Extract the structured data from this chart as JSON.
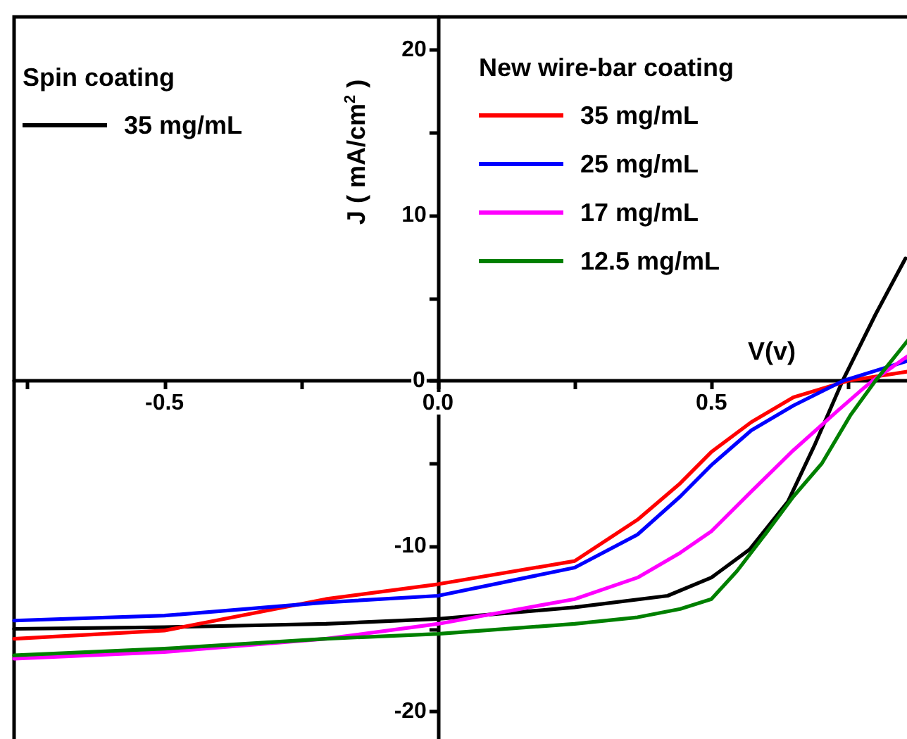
{
  "chart_data": {
    "type": "line",
    "xlabel": "V(v)",
    "ylabel": "J ( mA/cm$^{2}$ )",
    "annotations": [
      "Spin coating",
      "New wire-bar coating"
    ],
    "xlim": [
      -0.775,
      0.868
    ],
    "ylim": [
      -22,
      22
    ],
    "xticks": [
      {
        "value": -0.75,
        "label": null
      },
      -0.5,
      {
        "value": -0.25,
        "label": null
      },
      {
        "value": 0,
        "label": "0.0"
      },
      {
        "value": 0.25,
        "label": null
      },
      0.5,
      {
        "value": 0.75,
        "label": null
      }
    ],
    "yticks": [
      -20,
      {
        "value": -15,
        "label": null
      },
      -10,
      {
        "value": -5,
        "label": null
      },
      0,
      {
        "value": 5,
        "label": null
      },
      10,
      {
        "value": 15,
        "label": null
      },
      20
    ],
    "grid": false,
    "legend": "top",
    "marker": "none",
    "line_style": "solid",
    "series": [
      {
        "name": "35 mg/mL",
        "color": "#000000",
        "x": [
          -0.775,
          -0.5,
          -0.205,
          0,
          0.25,
          0.42,
          0.5,
          0.57,
          0.64,
          0.69,
          0.74,
          0.8,
          0.855
        ],
        "values": [
          -15.0,
          -14.9,
          -14.7,
          -14.4,
          -13.7,
          -13.0,
          -11.9,
          -10.2,
          -7.3,
          -3.8,
          0,
          4,
          7.4
        ]
      },
      {
        "name": "35 mg/mL",
        "color": "#ff0000",
        "x": [
          -0.775,
          -0.5,
          -0.205,
          0,
          0.25,
          0.365,
          0.443,
          0.5,
          0.573,
          0.65,
          0.73,
          0.75,
          0.868
        ],
        "values": [
          -15.6,
          -15.1,
          -13.2,
          -12.3,
          -10.9,
          -8.4,
          -6.2,
          -4.3,
          -2.5,
          -1.0,
          -0.2,
          0,
          0.6
        ]
      },
      {
        "name": "25 mg/mL",
        "color": "#0000ff",
        "x": [
          -0.775,
          -0.5,
          -0.205,
          0,
          0.25,
          0.365,
          0.443,
          0.5,
          0.573,
          0.65,
          0.741,
          0.868
        ],
        "values": [
          -14.5,
          -14.2,
          -13.4,
          -13.0,
          -11.3,
          -9.3,
          -7.0,
          -5.1,
          -3.0,
          -1.5,
          0,
          1.3
        ]
      },
      {
        "name": "17 mg/mL",
        "color": "#ff00ff",
        "x": [
          -0.775,
          -0.5,
          -0.205,
          0,
          0.25,
          0.365,
          0.443,
          0.5,
          0.573,
          0.65,
          0.728,
          0.78,
          0.795,
          0.868
        ],
        "values": [
          -16.8,
          -16.4,
          -15.6,
          -14.7,
          -13.2,
          -11.9,
          -10.4,
          -9.1,
          -6.7,
          -4.2,
          -1.9,
          -0.4,
          0,
          1.7
        ]
      },
      {
        "name": "12.5 mg/mL",
        "color": "#008000",
        "x": [
          -0.775,
          -0.5,
          -0.205,
          0,
          0.25,
          0.365,
          0.443,
          0.5,
          0.547,
          0.598,
          0.65,
          0.702,
          0.754,
          0.8,
          0.868
        ],
        "values": [
          -16.6,
          -16.2,
          -15.6,
          -15.3,
          -14.7,
          -14.3,
          -13.8,
          -13.2,
          -11.5,
          -9.3,
          -7.0,
          -5.0,
          -2.1,
          0,
          2.8
        ]
      }
    ]
  }
}
